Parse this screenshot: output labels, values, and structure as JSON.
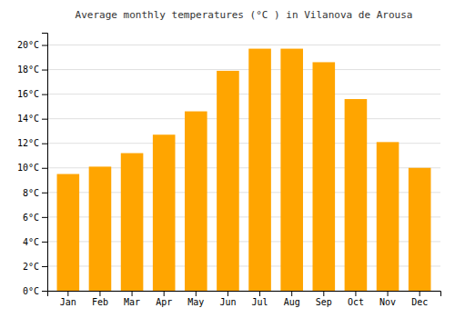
{
  "chart_data": {
    "type": "bar",
    "title": "Average monthly temperatures (°C ) in Vilanova de Arousa",
    "categories": [
      "Jan",
      "Feb",
      "Mar",
      "Apr",
      "May",
      "Jun",
      "Jul",
      "Aug",
      "Sep",
      "Oct",
      "Nov",
      "Dec"
    ],
    "values": [
      9.5,
      10.1,
      11.2,
      12.7,
      14.6,
      17.9,
      19.7,
      19.7,
      18.6,
      15.6,
      12.1,
      10.0
    ],
    "color": "#FFA500",
    "ylim": [
      0,
      21
    ],
    "yticks": [
      {
        "value": 0,
        "label": "0°C"
      },
      {
        "value": 2,
        "label": "2°C"
      },
      {
        "value": 4,
        "label": "4°C"
      },
      {
        "value": 6,
        "label": "6°C"
      },
      {
        "value": 8,
        "label": "8°C"
      },
      {
        "value": 10,
        "label": "10°C"
      },
      {
        "value": 12,
        "label": "12°C"
      },
      {
        "value": 14,
        "label": "14°C"
      },
      {
        "value": 16,
        "label": "16°C"
      },
      {
        "value": 18,
        "label": "18°C"
      },
      {
        "value": 20,
        "label": "20°C"
      }
    ],
    "grid": true
  }
}
